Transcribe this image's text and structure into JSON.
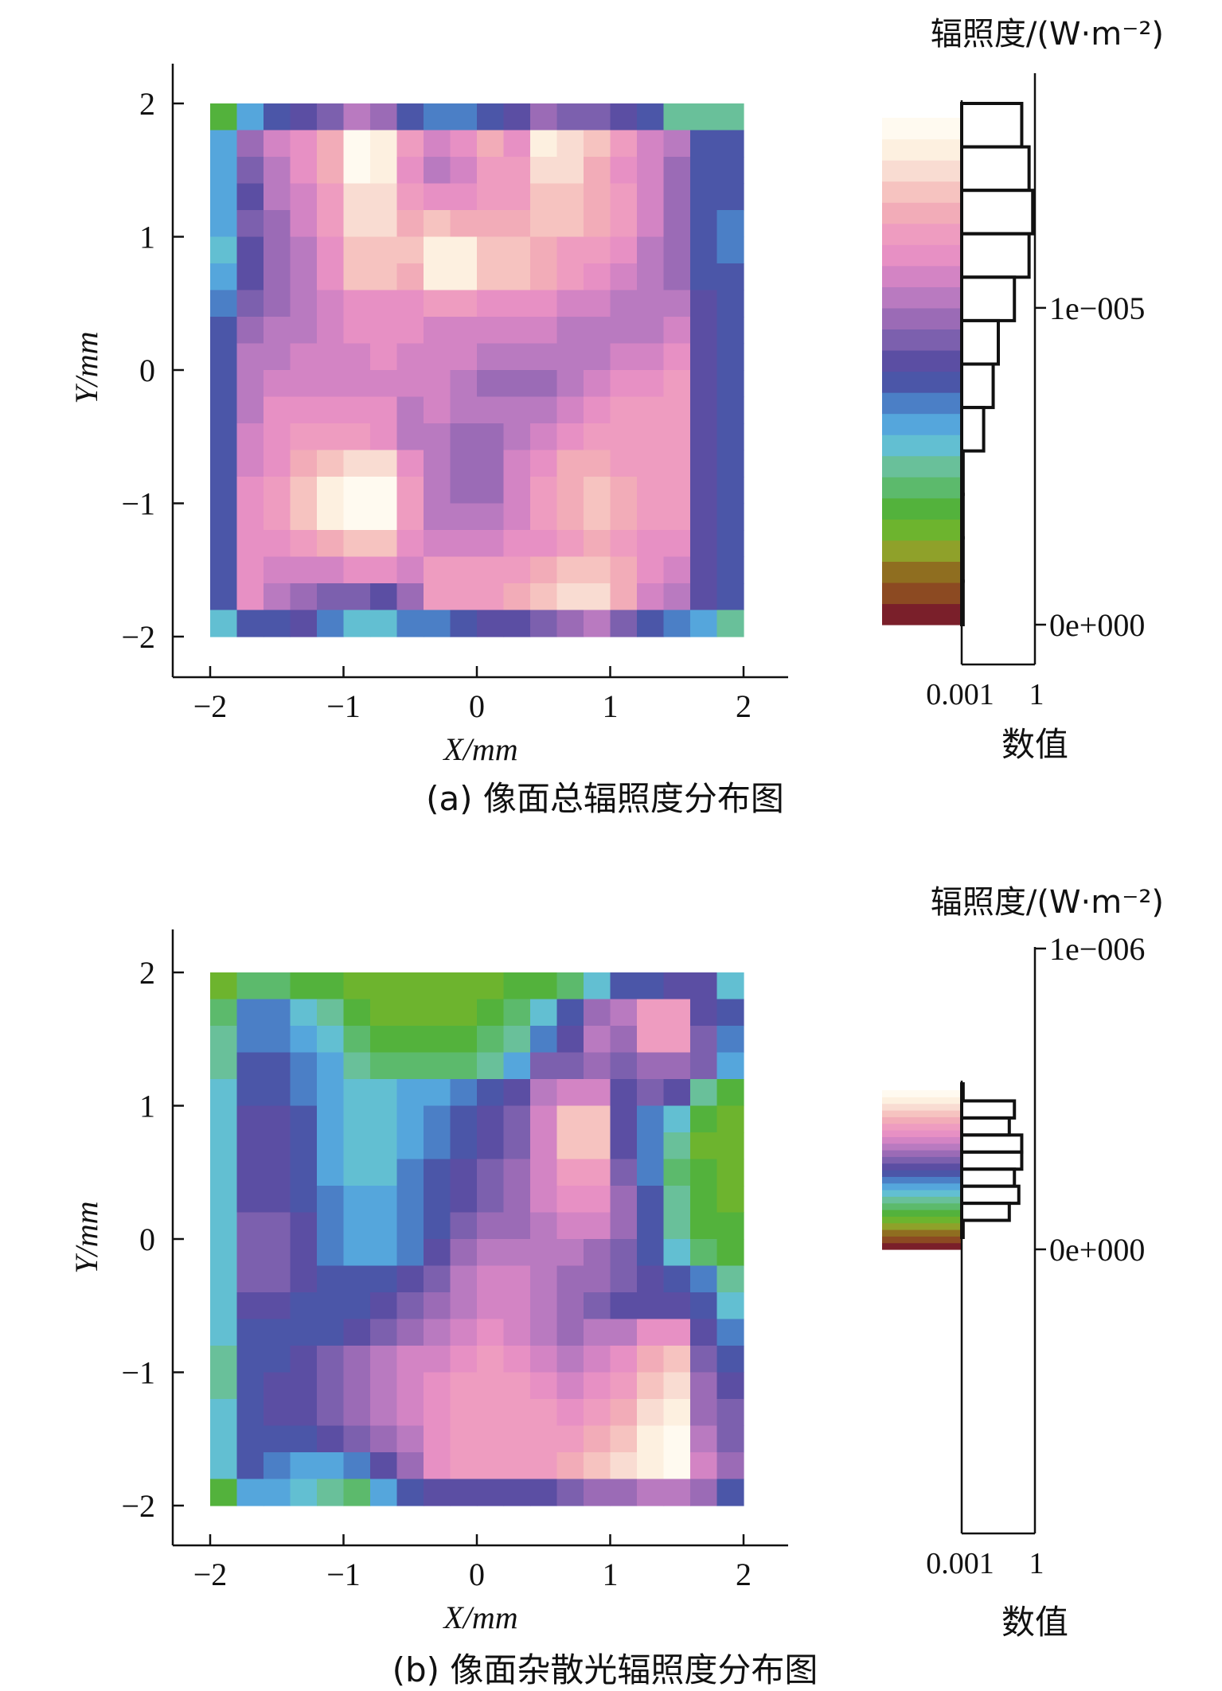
{
  "figures": [
    {
      "caption": "(a) 像面总辐照度分布图",
      "colorbar_title": "辐照度/(W·m⁻²)"
    },
    {
      "caption": "(b) 像面杂散光辐照度分布图",
      "colorbar_title": "辐照度/(W·m⁻²)"
    }
  ],
  "colormap": [
    "#7a1f2a",
    "#8c4a22",
    "#8f6e20",
    "#8fa12a",
    "#6db42e",
    "#53b23c",
    "#5cba6c",
    "#69c09a",
    "#62bfd2",
    "#55a6dc",
    "#4b7fc6",
    "#4b56a8",
    "#5b4ea3",
    "#7c60ae",
    "#9b6bb6",
    "#b97ac0",
    "#d384c4",
    "#e790c4",
    "#ee9cc0",
    "#f2acb8",
    "#f6c3c0",
    "#f9dcd2",
    "#fdf0e0",
    "#fffaf0"
  ],
  "chart_data": [
    {
      "type": "heatmap",
      "xlabel": "X/mm",
      "ylabel": "Y/mm",
      "xlim": [
        -2,
        2
      ],
      "ylim": [
        -2,
        2
      ],
      "xticks": [
        "−2",
        "−1",
        "0",
        "1",
        "2"
      ],
      "yticks": [
        "2",
        "1",
        "0",
        "−1",
        "−2"
      ],
      "grid_rows": 20,
      "grid_cols": 20,
      "level_max": 23,
      "grid": [
        "5 9 11 12 13 15 14 11 10 10 11 12 14 13 13 12 11 7 7 7",
        "9 14 16 17 19 23 22 18 16 17 19 17 22 21 20 18 16 15 11 11",
        "9 13 15 17 19 23 22 17 15 16 18 18 21 21 19 17 16 14 11 11",
        "9 12 15 16 18 21 21 18 17 17 18 18 20 20 19 18 16 14 11 11",
        "9 13 14 16 18 21 21 19 20 19 19 19 20 20 19 18 16 14 11 10",
        "8 12 14 15 17 20 20 20 22 22 20 20 19 18 18 17 15 14 11 10",
        "9 12 14 15 17 20 20 19 22 22 20 20 19 18 17 16 15 14 11 11",
        "10 13 14 15 16 17 17 17 18 18 17 17 17 16 16 15 15 15 12 11",
        "11 14 15 15 16 17 17 17 16 16 16 16 16 15 15 15 15 16 12 11",
        "11 15 15 16 16 16 17 16 16 16 15 15 15 15 15 16 16 17 12 11",
        "11 15 16 16 16 16 16 16 16 15 14 14 14 15 16 17 17 18 12 11",
        "11 15 17 17 17 17 17 15 16 15 15 15 15 16 17 18 18 18 12 11",
        "11 16 17 18 18 18 17 15 15 14 14 15 16 17 18 18 18 18 12 11",
        "11 16 17 19 20 21 21 17 15 14 14 16 17 19 19 18 18 18 12 11",
        "11 17 18 20 22 23 23 18 15 14 14 16 18 19 20 19 18 18 12 11",
        "11 17 18 20 22 23 23 18 15 15 15 16 18 19 20 19 18 18 12 11",
        "11 17 17 18 19 20 20 17 16 16 16 17 17 18 19 18 17 17 12 11",
        "11 17 16 16 16 17 17 16 18 18 18 18 19 20 20 19 17 16 12 11",
        "11 17 15 14 13 13 12 14 18 18 18 19 20 21 21 19 16 15 12 11",
        "8 11 11 12 10 8 8 10 10 11 12 12 13 14 15 13 11 10 9 7"
      ],
      "colorbar": {
        "ticks": [
          {
            "label": "1e−005",
            "value": 1e-05
          },
          {
            "label": "0e+000",
            "value": 0
          }
        ],
        "vmin": 0,
        "vmax": 1.6e-05,
        "hist_xlabel": "数值",
        "hist_ticks": [
          "0.001",
          "1"
        ],
        "histogram": [
          0.82,
          0.92,
          0.97,
          0.92,
          0.72,
          0.5,
          0.43,
          0.3,
          0.02,
          0.02,
          0.02,
          0.02
        ]
      }
    },
    {
      "type": "heatmap",
      "xlabel": "X/mm",
      "ylabel": "Y/mm",
      "xlim": [
        -2,
        2
      ],
      "ylim": [
        -2,
        2
      ],
      "xticks": [
        "−2",
        "−1",
        "0",
        "1",
        "2"
      ],
      "yticks": [
        "2",
        "1",
        "0",
        "−1",
        "−2"
      ],
      "grid_rows": 20,
      "grid_cols": 20,
      "level_max": 23,
      "grid": [
        "4 6 6 5 5 4 4 4 4 4 4 5 5 6 8 11 11 12 12 8",
        "6 10 10 8 7 5 4 4 4 4 5 6 8 11 14 15 18 18 12 11",
        "7 10 10 9 8 6 5 5 5 5 6 7 10 12 15 14 18 18 13 10",
        "7 11 11 10 9 7 6 6 6 6 7 9 13 13 14 13 14 14 13 9",
        "8 11 11 10 9 8 8 9 9 10 11 12 15 16 16 12 13 12 7 5",
        "8 12 12 11 9 8 8 9 10 11 12 13 16 20 20 12 10 8 5 4",
        "8 12 12 11 9 8 8 9 10 11 12 13 16 20 20 12 10 7 4 4",
        "8 12 12 11 9 8 8 10 11 12 13 14 16 18 18 13 10 6 5 4",
        "8 12 12 11 10 9 9 10 11 12 13 14 16 17 17 14 11 7 5 4",
        "8 13 13 12 10 9 9 10 11 13 14 14 15 16 16 14 11 7 5 5",
        "8 13 13 12 10 9 9 10 12 14 15 15 15 15 14 13 11 8 6 5",
        "8 13 13 12 11 11 11 12 13 15 16 16 15 14 14 13 12 11 10 7",
        "8 12 12 11 11 11 12 13 14 15 16 16 15 14 13 12 12 12 11 8",
        "8 11 11 11 11 12 13 14 15 16 17 16 15 14 15 15 17 17 12 10",
        "7 11 11 12 13 14 15 16 16 17 18 17 16 15 16 17 19 20 13 11",
        "7 11 12 12 13 14 15 16 17 18 18 18 17 16 17 18 20 21 14 12",
        "8 11 12 12 13 14 15 16 17 18 18 18 18 17 18 19 21 22 14 13",
        "8 11 11 11 12 13 14 15 17 18 18 18 18 18 19 20 22 23 15 13",
        "8 11 10 9 9 10 12 14 17 18 18 18 18 19 20 21 22 23 16 14",
        "5 9 9 8 7 6 9 11 12 12 12 12 12 13 14 14 15 15 14 11"
      ],
      "colorbar": {
        "ticks": [
          {
            "label": "1e−006",
            "value": 1e-06
          },
          {
            "label": "0e+000",
            "value": 0
          }
        ],
        "vmin": 0,
        "vmax": 1e-06,
        "bar_fraction": [
          0.0,
          0.55
        ],
        "hist_xlabel": "数值",
        "hist_ticks": [
          "0.001",
          "1"
        ],
        "histogram": [
          0.02,
          0.72,
          0.65,
          0.82,
          0.82,
          0.72,
          0.78,
          0.65,
          0.02
        ]
      }
    }
  ]
}
